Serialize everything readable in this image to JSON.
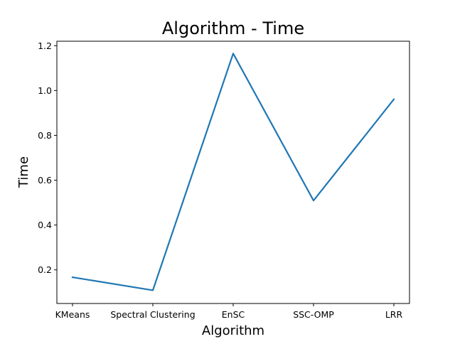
{
  "chart_data": {
    "type": "line",
    "title": "Algorithm - Time",
    "xlabel": "Algorithm",
    "ylabel": "Time",
    "categories": [
      "KMeans",
      "Spectral Clustering",
      "EnSC",
      "SSC-OMP",
      "LRR"
    ],
    "series": [
      {
        "values": [
          0.167,
          0.109,
          1.165,
          0.509,
          0.961
        ],
        "color": "#1f77b4"
      }
    ],
    "ylim": [
      0.05,
      1.22
    ],
    "yticks": [
      0.2,
      0.4,
      0.6,
      0.8,
      1.0,
      1.2
    ],
    "ytick_labels": [
      "0.2",
      "0.4",
      "0.6",
      "0.8",
      "1.0",
      "1.2"
    ],
    "grid": false,
    "legend": "none"
  }
}
